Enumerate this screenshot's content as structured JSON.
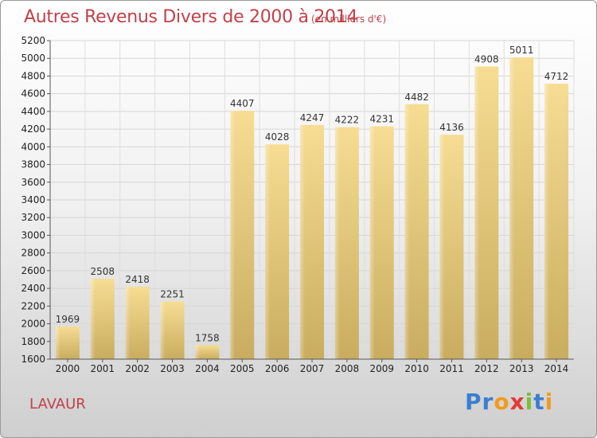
{
  "chart_data": {
    "type": "bar",
    "title": "Autres Revenus Divers de 2000 à 2014",
    "subtitle": "(en milliers d'€)",
    "categories": [
      "2000",
      "2001",
      "2002",
      "2003",
      "2004",
      "2005",
      "2006",
      "2007",
      "2008",
      "2009",
      "2010",
      "2011",
      "2012",
      "2013",
      "2014"
    ],
    "values": [
      1969,
      2508,
      2418,
      2251,
      1758,
      4407,
      4028,
      4247,
      4222,
      4231,
      4482,
      4136,
      4908,
      5011,
      4712
    ],
    "yticks": [
      "1600",
      "1800",
      "2000",
      "2200",
      "2400",
      "2600",
      "2800",
      "3000",
      "3200",
      "3400",
      "3600",
      "3800",
      "4000",
      "4200",
      "4400",
      "4600",
      "4800",
      "5000",
      "5200"
    ],
    "ylim": [
      1600,
      5200
    ],
    "grid": true,
    "bar_color": "#e8cf86"
  },
  "location": "LAVAUR",
  "logo": {
    "letters": [
      "P",
      "r",
      "o",
      "x",
      "i",
      "t",
      "i"
    ],
    "colors": [
      "#3b7fd0",
      "#3b7fd0",
      "#f39a1e",
      "#e53838",
      "#7bbf3a",
      "#3b7fd0",
      "#f39a1e"
    ]
  }
}
